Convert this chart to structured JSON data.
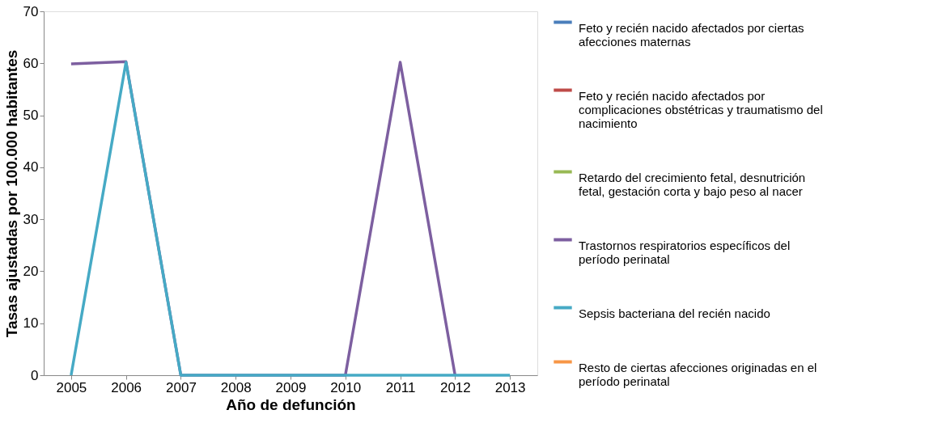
{
  "chart_data": {
    "type": "line",
    "xlabel": "Año de defunción",
    "ylabel": "Tasas ajustadas por 100.000 habitantes",
    "categories": [
      "2005",
      "2006",
      "2007",
      "2008",
      "2009",
      "2010",
      "2011",
      "2012",
      "2013"
    ],
    "ylim": [
      0,
      70
    ],
    "yticks": [
      0,
      10,
      20,
      30,
      40,
      50,
      60,
      70
    ],
    "grid": false,
    "legend": "right",
    "marker": "none",
    "line_style": "solid",
    "series": [
      {
        "name": "Feto y recién nacido afectados por ciertas afecciones maternas",
        "color": "#4a7ebb",
        "values": [
          null,
          null,
          null,
          null,
          null,
          null,
          null,
          null,
          null
        ]
      },
      {
        "name": "Feto y recién nacido afectados por complicaciones obstétricas y traumatismo del nacimiento",
        "color": "#be4b48",
        "values": [
          null,
          null,
          null,
          null,
          null,
          null,
          null,
          null,
          null
        ]
      },
      {
        "name": "Retardo del crecimiento fetal, desnutrición fetal, gestación corta y bajo peso al nacer",
        "color": "#98b954",
        "values": [
          null,
          null,
          null,
          null,
          null,
          null,
          null,
          null,
          null
        ]
      },
      {
        "name": "Trastornos respiratorios específicos del período perinatal",
        "color": "#7d5fa0",
        "values": [
          59.9,
          60.3,
          0,
          0,
          0,
          0,
          60.2,
          0,
          null
        ]
      },
      {
        "name": "Sepsis bacteriana del recién nacido",
        "color": "#46aac5",
        "values": [
          0,
          60.2,
          0,
          0,
          0,
          0,
          0,
          0,
          0
        ]
      },
      {
        "name": "Resto de ciertas afecciones originadas en el período perinatal",
        "color": "#f79646",
        "values": [
          null,
          null,
          null,
          null,
          null,
          null,
          null,
          null,
          null
        ]
      }
    ]
  }
}
